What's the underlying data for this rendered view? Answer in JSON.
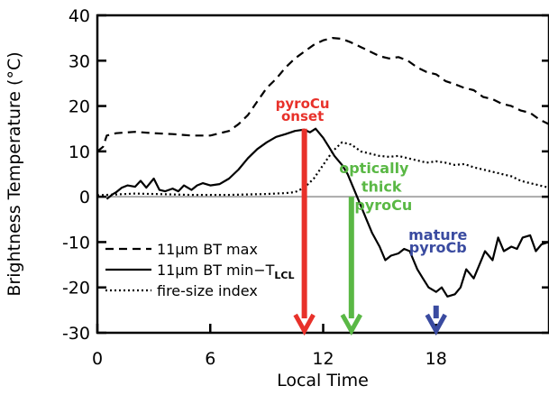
{
  "chart_data": {
    "type": "line",
    "xlabel": "Local Time",
    "ylabel": "Brightness Temperature (°C)",
    "xlim": [
      0,
      24
    ],
    "ylim": [
      -30,
      40
    ],
    "x_ticks": [
      0,
      6,
      12,
      18
    ],
    "x_tick_labels": [
      "0",
      "6",
      "12",
      "18"
    ],
    "y_ticks": [
      -30,
      -20,
      -10,
      0,
      10,
      20,
      30,
      40
    ],
    "y_tick_labels": [
      "-30",
      "-20",
      "-10",
      "0",
      "10",
      "20",
      "30",
      "40"
    ],
    "zero_line": true,
    "legend_position": "bottom-left",
    "series": [
      {
        "name": "11μm BT max",
        "line_style": "dashed",
        "color": "#000000",
        "x": [
          0,
          0.3,
          0.5,
          1,
          2,
          3,
          4,
          5,
          6,
          7,
          7.5,
          8,
          8.5,
          9,
          9.5,
          10,
          10.5,
          11,
          11.5,
          12,
          12.5,
          13,
          13.5,
          14,
          14.5,
          15,
          15.5,
          16,
          16.5,
          17,
          17.5,
          18,
          18.5,
          19,
          19.5,
          20,
          20.5,
          21,
          21.5,
          22,
          22.5,
          23,
          23.5,
          24
        ],
        "y": [
          10,
          11,
          13.5,
          14,
          14.3,
          14,
          13.8,
          13.5,
          13.5,
          14.5,
          16,
          18,
          21,
          24,
          26,
          28.5,
          30.5,
          32,
          33.5,
          34.5,
          35,
          34.8,
          34,
          33,
          32,
          31,
          30.5,
          30.8,
          30,
          28.5,
          27.5,
          27,
          25.5,
          24.8,
          24,
          23.5,
          22,
          21.5,
          20.5,
          20,
          19,
          18.5,
          17,
          16
        ]
      },
      {
        "name": "11μm BT min−T",
        "name_subscript": "LCL",
        "line_style": "solid",
        "color": "#000000",
        "x": [
          0.5,
          0.8,
          1,
          1.3,
          1.6,
          2,
          2.3,
          2.6,
          3,
          3.3,
          3.6,
          4,
          4.3,
          4.6,
          5,
          5.3,
          5.6,
          6,
          6.5,
          7,
          7.5,
          8,
          8.5,
          9,
          9.5,
          10,
          10.5,
          11,
          11.3,
          11.6,
          12,
          12.3,
          12.6,
          13,
          13.3,
          13.6,
          14,
          14.3,
          14.6,
          15,
          15.3,
          15.6,
          16,
          16.3,
          16.6,
          17,
          17.3,
          17.6,
          18,
          18.3,
          18.6,
          19,
          19.3,
          19.6,
          20,
          20.3,
          20.6,
          21,
          21.3,
          21.6,
          22,
          22.3,
          22.6,
          23,
          23.3,
          23.6,
          24
        ],
        "y": [
          -0.5,
          0.5,
          1,
          2,
          2.5,
          2.2,
          3.5,
          2,
          4,
          1.5,
          1.2,
          1.8,
          1.2,
          2.5,
          1.5,
          2.5,
          3,
          2.5,
          2.8,
          4,
          6,
          8.5,
          10.5,
          12,
          13.2,
          13.8,
          14.5,
          14.8,
          14.2,
          15,
          13,
          11,
          9,
          7,
          5,
          2,
          -2,
          -5,
          -8,
          -11,
          -14,
          -13,
          -12.5,
          -11.5,
          -12,
          -16,
          -18,
          -20,
          -21,
          -20,
          -22,
          -21.5,
          -20,
          -16,
          -18,
          -15,
          -12,
          -14,
          -9,
          -12,
          -11,
          -11.5,
          -9,
          -8.5,
          -12,
          -10.5,
          -10
        ]
      },
      {
        "name": "fire-size index",
        "line_style": "dotted",
        "color": "#000000",
        "x": [
          0,
          1,
          2,
          3,
          4,
          5,
          6,
          7,
          8,
          9,
          10,
          10.5,
          11,
          11.5,
          12,
          12.5,
          13,
          13.5,
          14,
          14.5,
          15,
          15.5,
          16,
          16.5,
          17,
          17.5,
          18,
          18.5,
          19,
          19.5,
          20,
          20.5,
          21,
          21.5,
          22,
          22.5,
          23,
          23.5,
          24
        ],
        "y": [
          0.3,
          0.5,
          0.7,
          0.6,
          0.5,
          0.4,
          0.4,
          0.4,
          0.5,
          0.6,
          0.8,
          1,
          2,
          4,
          7,
          10,
          12,
          11.5,
          10,
          9.5,
          9,
          8.8,
          9,
          8.5,
          8,
          7.5,
          7.8,
          7.5,
          7,
          7.2,
          6.5,
          6,
          5.5,
          5,
          4.5,
          3.5,
          3,
          2.5,
          2
        ]
      }
    ],
    "annotations": [
      {
        "id": "pyrocu-onset",
        "lines": [
          "pyroCu",
          "onset"
        ],
        "color": "#e8312a",
        "x": 11.0,
        "arrow_from": 15,
        "arrow_to": -30
      },
      {
        "id": "optically-thick",
        "lines": [
          "optically",
          "thick",
          "pyroCu"
        ],
        "color": "#5ab845",
        "x": 13.5,
        "arrow_from": 0,
        "arrow_to": -30
      },
      {
        "id": "mature-pyrocb",
        "lines": [
          "mature",
          "pyroCb"
        ],
        "color": "#3a4ba0",
        "x": 18.0,
        "arrow_from": -24,
        "arrow_to": -30
      }
    ]
  }
}
